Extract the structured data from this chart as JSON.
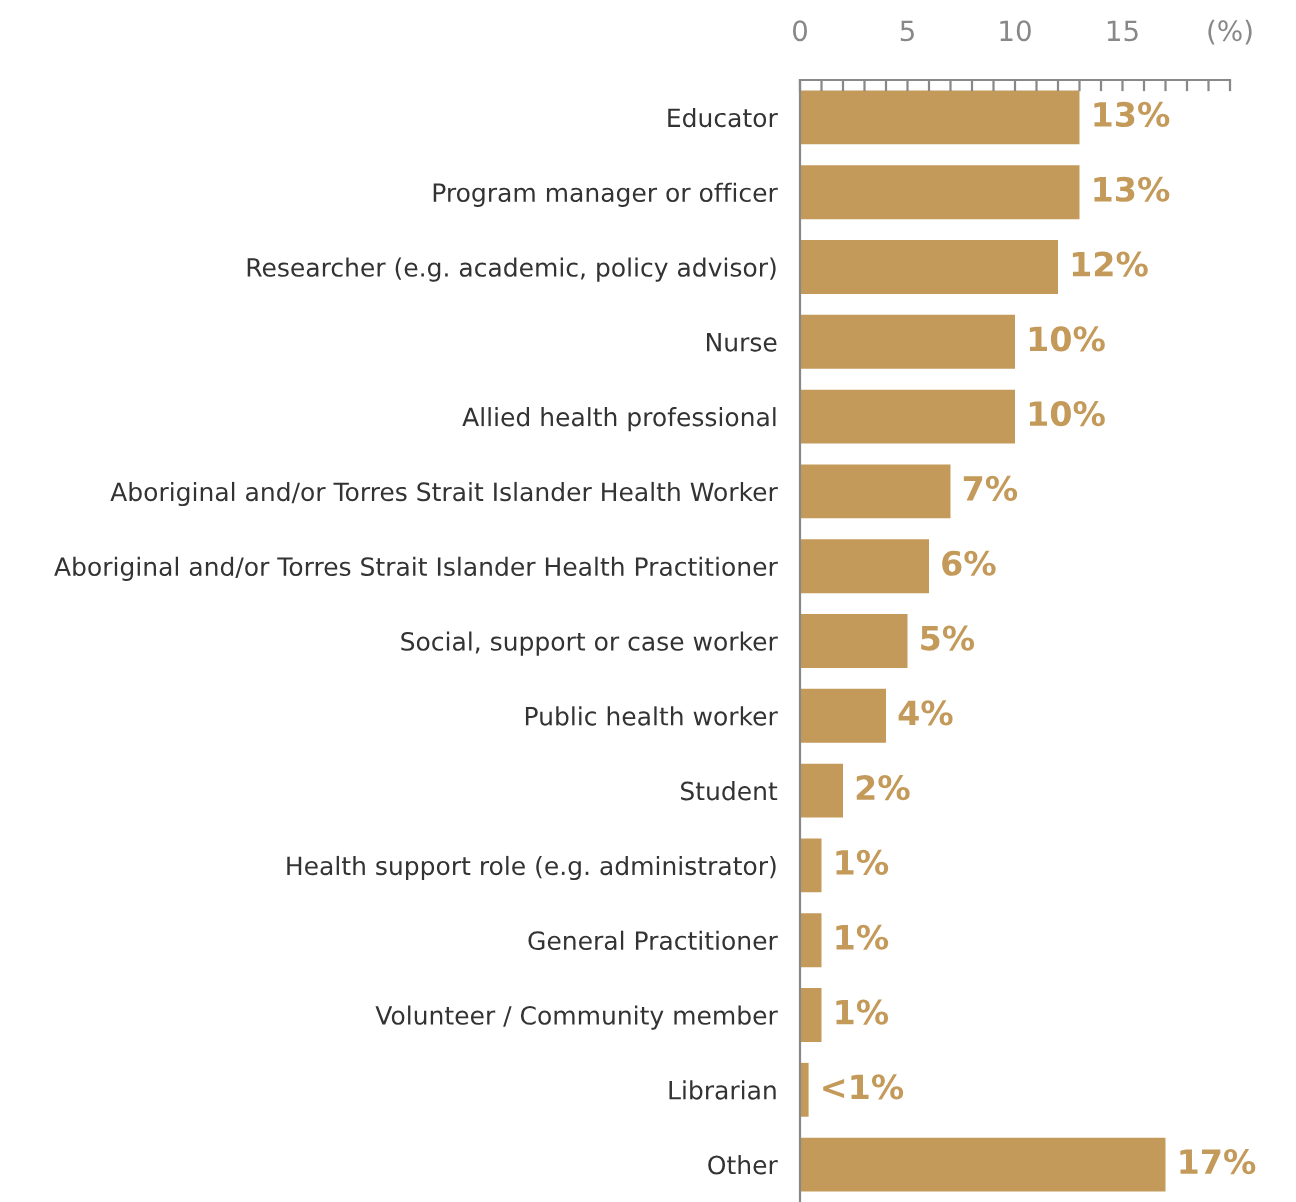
{
  "chart_data": {
    "type": "bar",
    "orientation": "horizontal",
    "categories": [
      "Educator",
      "Program manager or officer",
      "Researcher (e.g. academic, policy advisor)",
      "Nurse",
      "Allied health professional",
      "Aboriginal and/or Torres Strait Islander Health Worker",
      "Aboriginal and/or Torres Strait Islander Health Practitioner",
      "Social, support or case worker",
      "Public health worker",
      "Student",
      "Health support role (e.g. administrator)",
      "General Practitioner",
      "Volunteer / Community member",
      "Librarian",
      "Other"
    ],
    "values": [
      13,
      13,
      12,
      10,
      10,
      7,
      6,
      5,
      4,
      2,
      1,
      1,
      1,
      0.4,
      17
    ],
    "value_labels": [
      "13%",
      "13%",
      "12%",
      "10%",
      "10%",
      "7%",
      "6%",
      "5%",
      "4%",
      "2%",
      "1%",
      "1%",
      "1%",
      "<1%",
      "17%"
    ],
    "color": "#c49a5a",
    "xlim": [
      0,
      20
    ],
    "xticks": [
      0,
      {
        "value": 1,
        "label": null
      },
      {
        "value": 2,
        "label": null
      },
      {
        "value": 3,
        "label": null
      },
      {
        "value": 4,
        "label": null
      },
      5,
      {
        "value": 6,
        "label": null
      },
      {
        "value": 7,
        "label": null
      },
      {
        "value": 8,
        "label": null
      },
      {
        "value": 9,
        "label": null
      },
      10,
      {
        "value": 11,
        "label": null
      },
      {
        "value": 12,
        "label": null
      },
      {
        "value": 13,
        "label": null
      },
      {
        "value": 14,
        "label": null
      },
      15,
      {
        "value": 16,
        "label": null
      },
      {
        "value": 17,
        "label": null
      },
      {
        "value": 18,
        "label": null
      },
      {
        "value": 19,
        "label": null
      },
      {
        "value": 20,
        "label": "(%)"
      }
    ],
    "grid": false,
    "legend": false
  }
}
